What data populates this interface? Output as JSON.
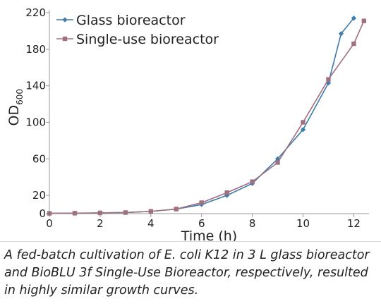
{
  "chart_data": {
    "type": "line",
    "title": "",
    "xlabel": "Time (h)",
    "ylabel": "OD",
    "ylabel_sub": "600",
    "xlim": [
      0,
      12.6
    ],
    "ylim": [
      0,
      220
    ],
    "xticks": [
      0,
      2,
      4,
      6,
      8,
      10,
      12
    ],
    "yticks": [
      0,
      20,
      60,
      100,
      140,
      180,
      220
    ],
    "grid": false,
    "legend": "top-left",
    "series": [
      {
        "name": "Glass bioreactor",
        "color": "#3f7cac",
        "marker": "diamond",
        "x": [
          0,
          1,
          2,
          3,
          4,
          5,
          6,
          7,
          8,
          9,
          10,
          11,
          11.5,
          12
        ],
        "y": [
          0.3,
          0.5,
          0.8,
          1.2,
          2.5,
          5,
          10,
          20,
          33,
          60,
          92,
          143,
          197,
          214
        ]
      },
      {
        "name": "Single-use bioreactor",
        "color": "#a07080",
        "marker": "square",
        "x": [
          0,
          1,
          2,
          3,
          4,
          5,
          6,
          7,
          8,
          9,
          10,
          11,
          12,
          12.4
        ],
        "y": [
          0.3,
          0.5,
          0.8,
          1.2,
          2.5,
          5,
          12,
          23,
          35,
          56,
          100,
          147,
          186,
          211
        ]
      }
    ]
  },
  "caption": "A fed-batch cultivation of E. coli K12 in 3 L glass bioreactor and BioBLU 3f Single-Use Bioreactor, respectively, resulted in highly similar growth curves."
}
